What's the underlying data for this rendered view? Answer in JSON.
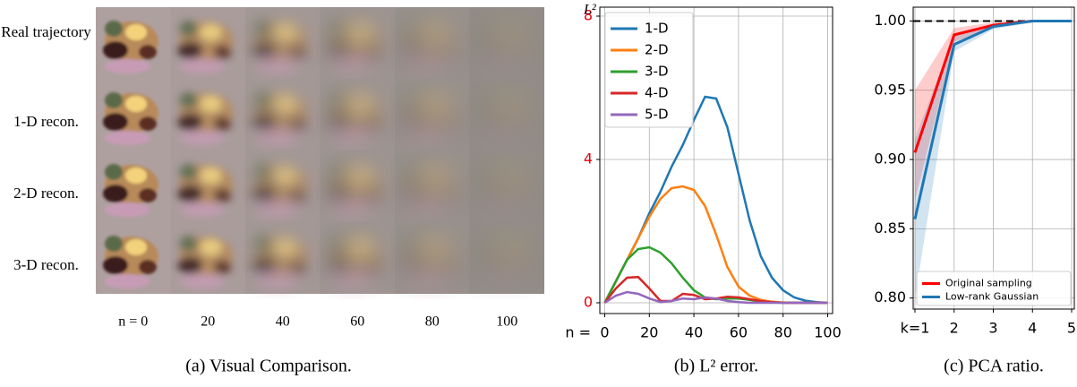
{
  "figure": {
    "panel_a": {
      "rows": [
        "Real trajectory",
        "1-D recon.",
        "2-D recon.",
        "3-D recon."
      ],
      "columns": [
        "n = 0",
        "20",
        "40",
        "60",
        "80",
        "100"
      ],
      "caption": "(a) Visual Comparison."
    }
  },
  "chart_data": [
    {
      "type": "line",
      "caption": "(b) L² error.",
      "ylabel": "L²",
      "xlabel": "n =",
      "ytick_color": "#e8000b",
      "grid": true,
      "legend": "upper-left",
      "x": [
        0,
        5,
        10,
        15,
        20,
        25,
        30,
        35,
        40,
        45,
        50,
        55,
        60,
        65,
        70,
        75,
        80,
        85,
        90,
        95,
        100
      ],
      "series": [
        {
          "name": "1-D",
          "color": "#1f77b4",
          "values": [
            0,
            0.6,
            1.2,
            1.8,
            2.5,
            3.1,
            3.8,
            4.4,
            5.1,
            5.75,
            5.7,
            4.9,
            3.6,
            2.3,
            1.3,
            0.7,
            0.35,
            0.15,
            0.06,
            0.02,
            0
          ]
        },
        {
          "name": "2-D",
          "color": "#ff7f0e",
          "values": [
            0,
            0.6,
            1.2,
            1.8,
            2.4,
            2.9,
            3.2,
            3.25,
            3.15,
            2.7,
            1.9,
            1.0,
            0.45,
            0.2,
            0.08,
            0.03,
            0.01,
            0,
            0,
            0,
            0
          ]
        },
        {
          "name": "3-D",
          "color": "#2ca02c",
          "values": [
            0,
            0.6,
            1.2,
            1.5,
            1.55,
            1.4,
            1.1,
            0.7,
            0.35,
            0.15,
            0.1,
            0.12,
            0.12,
            0.08,
            0.03,
            0.01,
            0,
            0,
            0,
            0,
            0
          ]
        },
        {
          "name": "4-D",
          "color": "#d62728",
          "values": [
            0,
            0.4,
            0.7,
            0.72,
            0.4,
            0.05,
            0.05,
            0.25,
            0.22,
            0.1,
            0.12,
            0.17,
            0.15,
            0.1,
            0.05,
            0.02,
            0,
            0,
            0,
            0,
            0
          ]
        },
        {
          "name": "5-D",
          "color": "#9467bd",
          "values": [
            0,
            0.2,
            0.3,
            0.25,
            0.12,
            0.02,
            0.05,
            0.12,
            0.1,
            0.15,
            0.12,
            0.05,
            0.02,
            0,
            0,
            0,
            0,
            0,
            0,
            0,
            0
          ]
        }
      ],
      "xlim": [
        -1,
        101
      ],
      "xticks": [
        0,
        20,
        40,
        60,
        80,
        100
      ],
      "ylim": [
        -0.3,
        8.25
      ],
      "yticks": [
        0,
        4,
        8
      ]
    },
    {
      "type": "line",
      "caption": "(c) PCA ratio.",
      "grid": true,
      "legend": "lower-right",
      "hline": 1.0,
      "x": [
        1,
        2,
        3,
        4,
        5
      ],
      "series": [
        {
          "name": "Original sampling",
          "color": "#ff0000",
          "values": [
            0.905,
            0.99,
            0.997,
            1.0,
            1.0
          ],
          "lower": [
            0.87,
            0.985,
            0.995,
            0.999,
            1.0
          ],
          "upper": [
            0.95,
            0.995,
            0.999,
            1.0,
            1.0
          ]
        },
        {
          "name": "Low-rank Gaussian",
          "color": "#1f77b4",
          "values": [
            0.857,
            0.983,
            0.996,
            1.0,
            1.0
          ],
          "lower": [
            0.8,
            0.978,
            0.994,
            0.999,
            1.0
          ],
          "upper": [
            0.915,
            0.99,
            0.998,
            1.0,
            1.0
          ]
        }
      ],
      "xlim": [
        1,
        5
      ],
      "xticks": [
        {
          "value": 1,
          "label": "k=1"
        },
        2,
        3,
        4,
        5
      ],
      "ylim": [
        0.792,
        1.01
      ],
      "yticks": [
        {
          "value": 0.8,
          "label": "0.80"
        },
        0.85,
        {
          "value": 0.9,
          "label": "0.90"
        },
        0.95,
        {
          "value": 1.0,
          "label": "1.00"
        }
      ]
    }
  ]
}
